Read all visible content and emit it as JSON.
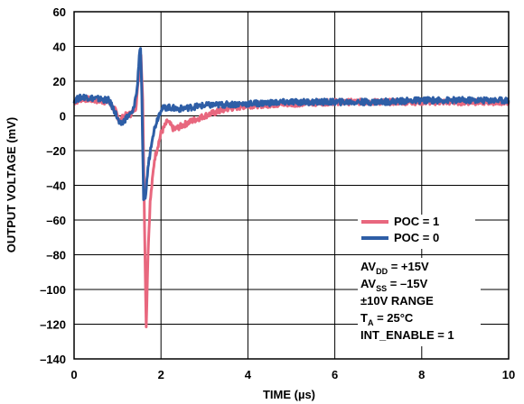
{
  "chart_data": {
    "type": "line",
    "xlabel": "TIME (µs)",
    "ylabel": "OUTPUT VOLTAGE (mV)",
    "xlim": [
      0,
      10
    ],
    "ylim": [
      -140,
      60
    ],
    "x_ticks": [
      0,
      2,
      4,
      6,
      8,
      10
    ],
    "y_ticks": [
      60,
      40,
      20,
      0,
      -20,
      -40,
      -60,
      -80,
      -100,
      -120,
      -140
    ],
    "x_tick_labels": [
      "0",
      "2",
      "4",
      "6",
      "8",
      "10"
    ],
    "y_tick_labels": [
      "60",
      "40",
      "20",
      "0",
      "–20",
      "–40",
      "–60",
      "–80",
      "–100",
      "–120",
      "–140"
    ],
    "grid": true,
    "legend_position": "bottom-right",
    "series": [
      {
        "name": "POC = 1",
        "color": "#e8677e",
        "points": [
          [
            0,
            8
          ],
          [
            0.2,
            10
          ],
          [
            0.5,
            9
          ],
          [
            0.8,
            8
          ],
          [
            0.95,
            3
          ],
          [
            1.05,
            -3
          ],
          [
            1.15,
            0
          ],
          [
            1.3,
            1
          ],
          [
            1.42,
            5
          ],
          [
            1.5,
            25
          ],
          [
            1.54,
            35
          ],
          [
            1.58,
            10
          ],
          [
            1.62,
            -60
          ],
          [
            1.66,
            -122
          ],
          [
            1.7,
            -80
          ],
          [
            1.75,
            -50
          ],
          [
            1.85,
            -25
          ],
          [
            2.0,
            -10
          ],
          [
            2.15,
            -3
          ],
          [
            2.3,
            -8
          ],
          [
            2.45,
            -6
          ],
          [
            2.7,
            -3
          ],
          [
            3.0,
            0
          ],
          [
            3.5,
            4
          ],
          [
            4.0,
            6
          ],
          [
            5.0,
            7
          ],
          [
            6.0,
            8
          ],
          [
            7.0,
            8
          ],
          [
            8.0,
            8
          ],
          [
            9.0,
            8
          ],
          [
            10,
            8
          ]
        ]
      },
      {
        "name": "POC = 0",
        "color": "#2e5ea6",
        "points": [
          [
            0,
            9
          ],
          [
            0.2,
            11
          ],
          [
            0.5,
            10
          ],
          [
            0.8,
            9
          ],
          [
            0.95,
            2
          ],
          [
            1.05,
            -5
          ],
          [
            1.12,
            -4
          ],
          [
            1.2,
            -1
          ],
          [
            1.35,
            2
          ],
          [
            1.45,
            15
          ],
          [
            1.5,
            35
          ],
          [
            1.53,
            40
          ],
          [
            1.56,
            10
          ],
          [
            1.6,
            -50
          ],
          [
            1.65,
            -45
          ],
          [
            1.7,
            -30
          ],
          [
            1.8,
            -12
          ],
          [
            1.9,
            -3
          ],
          [
            2.0,
            4
          ],
          [
            2.15,
            5
          ],
          [
            2.4,
            4
          ],
          [
            3.0,
            6
          ],
          [
            4.0,
            7
          ],
          [
            5.0,
            8
          ],
          [
            6.0,
            8
          ],
          [
            7.0,
            8
          ],
          [
            8.0,
            9
          ],
          [
            9.0,
            9
          ],
          [
            10,
            9
          ]
        ]
      }
    ],
    "annotations": [
      {
        "text": "AV",
        "sub": "DD",
        "rest": " = +15V"
      },
      {
        "text": "AV",
        "sub": "SS",
        "rest": " = –15V"
      },
      {
        "text": "±10V RANGE",
        "sub": "",
        "rest": ""
      },
      {
        "text": "T",
        "sub": "A",
        "rest": " = 25°C"
      },
      {
        "text": "INT_ENABLE = 1",
        "sub": "",
        "rest": ""
      }
    ]
  }
}
